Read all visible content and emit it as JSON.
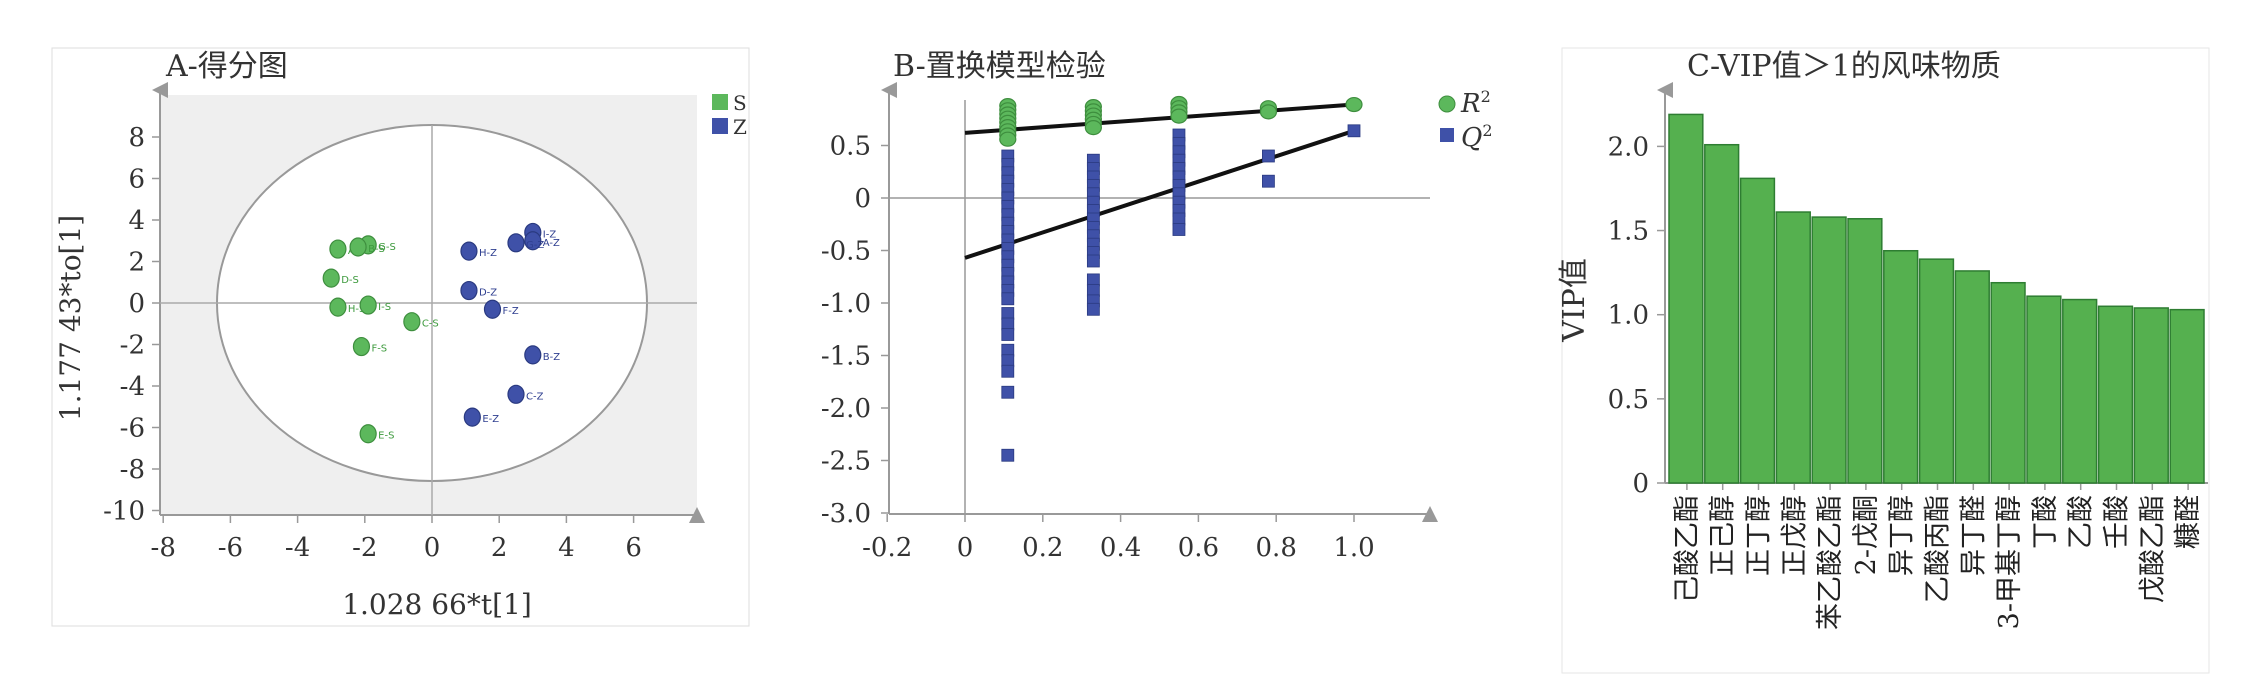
{
  "colors": {
    "green": "#5cb85c",
    "green_stroke": "#3e8e3e",
    "blue": "#3f51a8",
    "blue_stroke": "#2a3a80",
    "bar": "#55b04f",
    "bar_stroke": "#2e7d32",
    "panel_bg": "#f0f0f0"
  },
  "chart_data": [
    {
      "panel": "A",
      "type": "scatter",
      "title": "A-得分图",
      "xlabel": "1.028 66*t[1]",
      "ylabel": "1.177 43*to[1]",
      "xlim": [
        -8,
        8
      ],
      "ylim": [
        -10,
        10
      ],
      "xticks": [
        "-8",
        "-6",
        "-4",
        "-2",
        "0",
        "2",
        "4",
        "6"
      ],
      "yticks": [
        "8",
        "6",
        "4",
        "2",
        "0",
        "-2",
        "-4",
        "-6",
        "-8",
        "-10"
      ],
      "legend": [
        "S",
        "Z"
      ],
      "series": [
        {
          "name": "S",
          "points": [
            {
              "label": "G-S",
              "x": -1.9,
              "y": 2.8
            },
            {
              "label": "A-S",
              "x": -2.8,
              "y": 2.6
            },
            {
              "label": "B-S",
              "x": -2.2,
              "y": 2.7
            },
            {
              "label": "D-S",
              "x": -3.0,
              "y": 1.2
            },
            {
              "label": "H-S",
              "x": -2.8,
              "y": -0.2
            },
            {
              "label": "I-S",
              "x": -1.9,
              "y": -0.1
            },
            {
              "label": "C-S",
              "x": -0.6,
              "y": -0.9
            },
            {
              "label": "F-S",
              "x": -2.1,
              "y": -2.1
            },
            {
              "label": "E-S",
              "x": -1.9,
              "y": -6.3
            }
          ]
        },
        {
          "name": "Z",
          "points": [
            {
              "label": "I-Z",
              "x": 3.0,
              "y": 3.4
            },
            {
              "label": "A-Z",
              "x": 3.0,
              "y": 3.0
            },
            {
              "label": "G-Z",
              "x": 2.5,
              "y": 2.9
            },
            {
              "label": "H-Z",
              "x": 1.1,
              "y": 2.5
            },
            {
              "label": "D-Z",
              "x": 1.1,
              "y": 0.6
            },
            {
              "label": "F-Z",
              "x": 1.8,
              "y": -0.3
            },
            {
              "label": "B-Z",
              "x": 3.0,
              "y": -2.5
            },
            {
              "label": "C-Z",
              "x": 2.5,
              "y": -4.4
            },
            {
              "label": "E-Z",
              "x": 1.2,
              "y": -5.5
            }
          ]
        }
      ]
    },
    {
      "panel": "B",
      "type": "scatter",
      "title": "B-置换模型检验",
      "xlim": [
        -0.2,
        1.2
      ],
      "ylim": [
        -3.0,
        1.0
      ],
      "xticks": [
        "-0.2",
        "0",
        "0.2",
        "0.4",
        "0.6",
        "0.8",
        "1.0"
      ],
      "yticks": [
        "0.5",
        "0",
        "-0.5",
        "-1.0",
        "-1.5",
        "-2.0",
        "-2.5",
        "-3.0"
      ],
      "legend": [
        "R",
        "Q"
      ],
      "legend_sup": "2",
      "r2_line": {
        "intercept": 0.62,
        "end": [
          1.0,
          0.89
        ]
      },
      "q2_line": {
        "intercept": -0.57,
        "end": [
          1.0,
          0.64
        ]
      },
      "series": [
        {
          "name": "R2",
          "points": [
            [
              0.11,
              0.88
            ],
            [
              0.11,
              0.84
            ],
            [
              0.11,
              0.8
            ],
            [
              0.11,
              0.76
            ],
            [
              0.11,
              0.72
            ],
            [
              0.11,
              0.68
            ],
            [
              0.11,
              0.64
            ],
            [
              0.11,
              0.6
            ],
            [
              0.11,
              0.56
            ],
            [
              0.33,
              0.87
            ],
            [
              0.33,
              0.83
            ],
            [
              0.33,
              0.79
            ],
            [
              0.33,
              0.75
            ],
            [
              0.33,
              0.71
            ],
            [
              0.33,
              0.67
            ],
            [
              0.55,
              0.9
            ],
            [
              0.55,
              0.86
            ],
            [
              0.55,
              0.82
            ],
            [
              0.55,
              0.78
            ],
            [
              0.78,
              0.86
            ],
            [
              0.78,
              0.82
            ],
            [
              1.0,
              0.89
            ]
          ]
        },
        {
          "name": "Q2",
          "points": [
            [
              0.11,
              0.4
            ],
            [
              0.11,
              0.32
            ],
            [
              0.11,
              0.24
            ],
            [
              0.11,
              0.16
            ],
            [
              0.11,
              0.08
            ],
            [
              0.11,
              0.0
            ],
            [
              0.11,
              -0.08
            ],
            [
              0.11,
              -0.16
            ],
            [
              0.11,
              -0.24
            ],
            [
              0.11,
              -0.32
            ],
            [
              0.11,
              -0.4
            ],
            [
              0.11,
              -0.48
            ],
            [
              0.11,
              -0.56
            ],
            [
              0.11,
              -0.64
            ],
            [
              0.11,
              -0.72
            ],
            [
              0.11,
              -0.8
            ],
            [
              0.11,
              -0.88
            ],
            [
              0.11,
              -0.96
            ],
            [
              0.11,
              -1.1
            ],
            [
              0.11,
              -1.2
            ],
            [
              0.11,
              -1.3
            ],
            [
              0.11,
              -1.45
            ],
            [
              0.11,
              -1.55
            ],
            [
              0.11,
              -1.65
            ],
            [
              0.11,
              -1.85
            ],
            [
              0.11,
              -2.45
            ],
            [
              0.33,
              0.36
            ],
            [
              0.33,
              0.28
            ],
            [
              0.33,
              0.2
            ],
            [
              0.33,
              0.12
            ],
            [
              0.33,
              0.04
            ],
            [
              0.33,
              -0.04
            ],
            [
              0.33,
              -0.12
            ],
            [
              0.33,
              -0.2
            ],
            [
              0.33,
              -0.28
            ],
            [
              0.33,
              -0.36
            ],
            [
              0.33,
              -0.44
            ],
            [
              0.33,
              -0.52
            ],
            [
              0.33,
              -0.6
            ],
            [
              0.33,
              -0.78
            ],
            [
              0.33,
              -0.88
            ],
            [
              0.33,
              -0.98
            ],
            [
              0.33,
              -1.06
            ],
            [
              0.55,
              0.6
            ],
            [
              0.55,
              0.52
            ],
            [
              0.55,
              0.44
            ],
            [
              0.55,
              0.36
            ],
            [
              0.55,
              0.28
            ],
            [
              0.55,
              0.2
            ],
            [
              0.55,
              0.12
            ],
            [
              0.55,
              0.04
            ],
            [
              0.55,
              -0.04
            ],
            [
              0.55,
              -0.12
            ],
            [
              0.55,
              -0.2
            ],
            [
              0.55,
              -0.3
            ],
            [
              0.78,
              0.4
            ],
            [
              0.78,
              0.16
            ],
            [
              1.0,
              0.64
            ]
          ]
        }
      ]
    },
    {
      "panel": "C",
      "type": "bar",
      "title": "C-VIP值＞1的风味物质",
      "ylabel": "VIP值",
      "ylim": [
        0,
        2.3
      ],
      "yticks": [
        "0",
        "0.5",
        "1.0",
        "1.5",
        "2.0"
      ],
      "categories": [
        "己酸乙酯",
        "正己醇",
        "正丁醇",
        "正戊醇",
        "苯乙酸乙酯",
        "2-戊酮",
        "异丁醇",
        "乙酸丙酯",
        "异丁醛",
        "3-甲基丁醇",
        "丁酸",
        "乙酸",
        "壬酸",
        "戊酸乙酯",
        "糠醛"
      ],
      "values": [
        2.19,
        2.01,
        1.81,
        1.61,
        1.58,
        1.57,
        1.38,
        1.33,
        1.26,
        1.19,
        1.11,
        1.09,
        1.05,
        1.04,
        1.03
      ]
    }
  ]
}
